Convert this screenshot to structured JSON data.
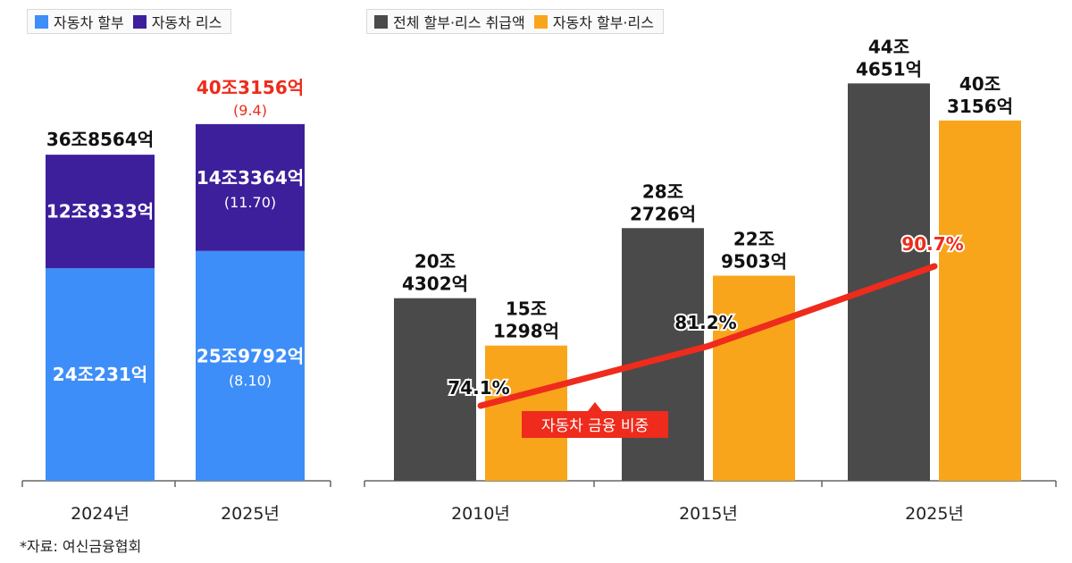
{
  "source_note": "*자료: 여신금융협회",
  "chart_data": [
    {
      "type": "bar",
      "stacked": true,
      "categories": [
        "2024년",
        "2025년"
      ],
      "series": [
        {
          "name": "자동차 할부",
          "color": "#3d8ef8",
          "values": [
            24.0231,
            25.9792
          ],
          "labels": [
            "24조231억",
            "25조9792억"
          ],
          "sublabels": [
            "",
            "(8.10)"
          ]
        },
        {
          "name": "자동차 리스",
          "color": "#3d1f9b",
          "values": [
            12.8333,
            14.3364
          ],
          "labels": [
            "12조8333억",
            "14조3364억"
          ],
          "sublabels": [
            "",
            "(11.70)"
          ]
        }
      ],
      "totals": [
        {
          "label": "36조8564억",
          "sublabel": "",
          "highlight": false
        },
        {
          "label": "40조3156억",
          "sublabel": "(9.4)",
          "highlight": true
        }
      ],
      "unit": "조원"
    },
    {
      "type": "bar",
      "categories": [
        "2010년",
        "2015년",
        "2025년"
      ],
      "series": [
        {
          "name": "전체 할부·리스 취급액",
          "color": "#4a4a4a",
          "values": [
            20.4302,
            28.2726,
            44.4651
          ],
          "labels": [
            [
              "20조",
              "4302억"
            ],
            [
              "28조",
              "2726억"
            ],
            [
              "44조",
              "4651억"
            ]
          ]
        },
        {
          "name": "자동차 할부·리스",
          "color": "#f9a51b",
          "values": [
            15.1298,
            22.9503,
            40.3156
          ],
          "labels": [
            [
              "15조",
              "1298억"
            ],
            [
              "22조",
              "9503억"
            ],
            [
              "40조",
              "3156억"
            ]
          ]
        }
      ],
      "line": {
        "name": "자동차 금융 비중",
        "color": "#ee2b1c",
        "values": [
          74.1,
          81.2,
          90.7
        ],
        "labels": [
          "74.1%",
          "81.2%",
          "90.7%"
        ]
      },
      "unit": "조원"
    }
  ]
}
